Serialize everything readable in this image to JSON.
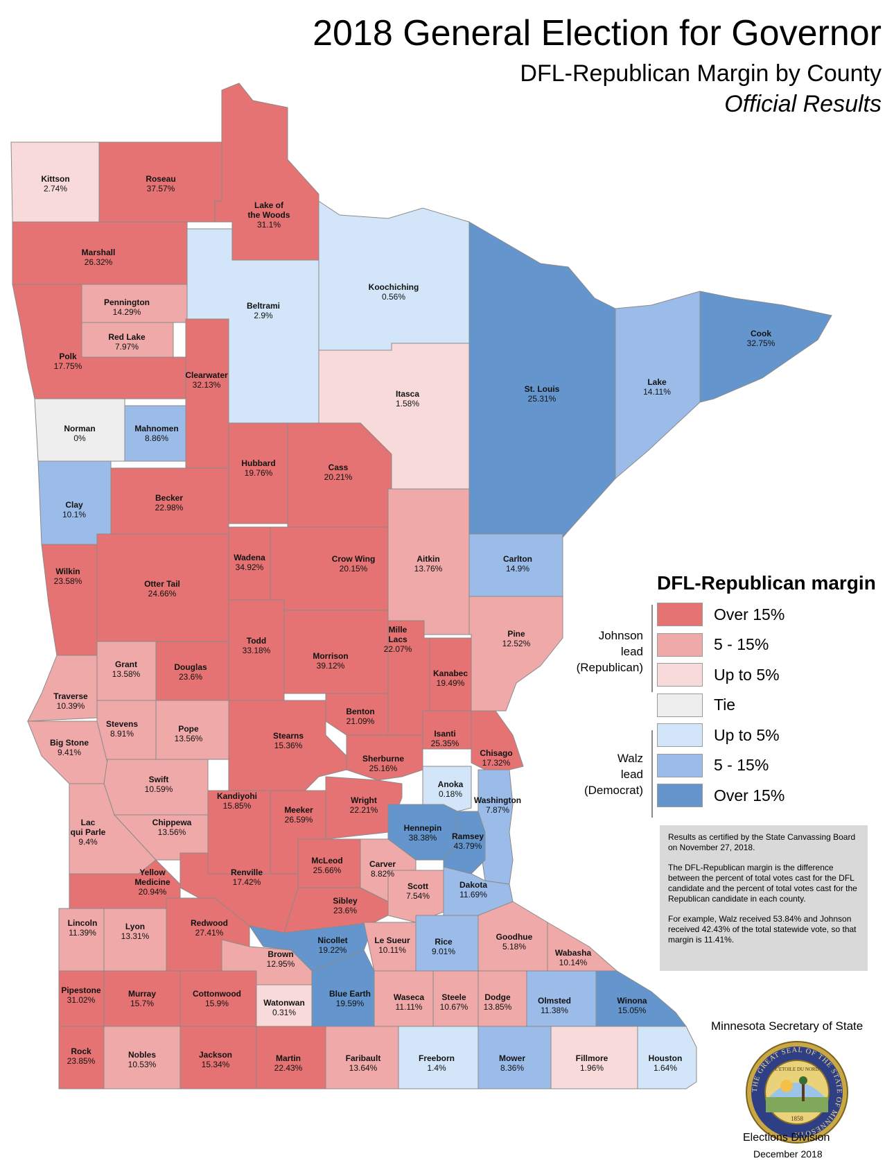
{
  "header": {
    "title": "2018 General Election for Governor",
    "subtitle": "DFL-Republican Margin by County",
    "status": "Official Results"
  },
  "colors": {
    "rep_over15": "#e57373",
    "rep_5_15": "#f0a9a9",
    "rep_upto5": "#f9dada",
    "tie": "#eeeeee",
    "dem_upto5": "#d3e6f9",
    "dem_5_15": "#9bbce9",
    "dem_over15": "#6496cd"
  },
  "legend": {
    "title": "DFL-Republican margin",
    "johnson_label": "Johnson\nlead\n(Republican)",
    "walz_label": "Walz\nlead\n(Democrat)",
    "items": [
      {
        "label": "Over 15%",
        "color": "rep_over15"
      },
      {
        "label": "5 - 15%",
        "color": "rep_5_15"
      },
      {
        "label": "Up to 5%",
        "color": "rep_upto5"
      },
      {
        "label": "Tie",
        "color": "tie"
      },
      {
        "label": "Up to 5%",
        "color": "dem_upto5"
      },
      {
        "label": "5 - 15%",
        "color": "dem_5_15"
      },
      {
        "label": "Over 15%",
        "color": "dem_over15"
      }
    ]
  },
  "notes": {
    "p1": "Results as certified by the State Canvassing Board on November 27, 2018.",
    "p2": "The DFL-Republican margin is the difference between the percent of total votes cast for the DFL candidate and the percent of total votes cast for the Republican candidate in each county.",
    "p3": "For example, Walz received 53.84% and Johnson received 42.43% of the total statewide vote, so that margin is 11.41%."
  },
  "footer": {
    "agency": "Minnesota Secretary of State",
    "division": "Elections Division",
    "date": "December 2018",
    "seal_text": "THE GREAT SEAL OF THE STATE OF MINNESOTA",
    "seal_motto": "L'ETOILE DU NORD",
    "seal_year": "1858"
  },
  "counties": [
    {
      "name": "Kittson",
      "margin": "2.74%",
      "cat": "rep_upto5"
    },
    {
      "name": "Roseau",
      "margin": "37.57%",
      "cat": "rep_over15"
    },
    {
      "name": "Lake of the Woods",
      "margin": "31.1%",
      "cat": "rep_over15"
    },
    {
      "name": "Marshall",
      "margin": "26.32%",
      "cat": "rep_over15"
    },
    {
      "name": "Pennington",
      "margin": "14.29%",
      "cat": "rep_5_15"
    },
    {
      "name": "Red Lake",
      "margin": "7.97%",
      "cat": "rep_5_15"
    },
    {
      "name": "Polk",
      "margin": "17.75%",
      "cat": "rep_over15"
    },
    {
      "name": "Beltrami",
      "margin": "2.9%",
      "cat": "dem_upto5"
    },
    {
      "name": "Koochiching",
      "margin": "0.56%",
      "cat": "dem_upto5"
    },
    {
      "name": "Clearwater",
      "margin": "32.13%",
      "cat": "rep_over15"
    },
    {
      "name": "Itasca",
      "margin": "1.58%",
      "cat": "rep_upto5"
    },
    {
      "name": "St. Louis",
      "margin": "25.31%",
      "cat": "dem_over15"
    },
    {
      "name": "Lake",
      "margin": "14.11%",
      "cat": "dem_5_15"
    },
    {
      "name": "Cook",
      "margin": "32.75%",
      "cat": "dem_over15"
    },
    {
      "name": "Norman",
      "margin": "0%",
      "cat": "tie"
    },
    {
      "name": "Mahnomen",
      "margin": "8.86%",
      "cat": "dem_5_15"
    },
    {
      "name": "Hubbard",
      "margin": "19.76%",
      "cat": "rep_over15"
    },
    {
      "name": "Cass",
      "margin": "20.21%",
      "cat": "rep_over15"
    },
    {
      "name": "Clay",
      "margin": "10.1%",
      "cat": "dem_5_15"
    },
    {
      "name": "Becker",
      "margin": "22.98%",
      "cat": "rep_over15"
    },
    {
      "name": "Wadena",
      "margin": "34.92%",
      "cat": "rep_over15"
    },
    {
      "name": "Crow Wing",
      "margin": "20.15%",
      "cat": "rep_over15"
    },
    {
      "name": "Aitkin",
      "margin": "13.76%",
      "cat": "rep_5_15"
    },
    {
      "name": "Carlton",
      "margin": "14.9%",
      "cat": "dem_5_15"
    },
    {
      "name": "Wilkin",
      "margin": "23.58%",
      "cat": "rep_over15"
    },
    {
      "name": "Otter Tail",
      "margin": "24.66%",
      "cat": "rep_over15"
    },
    {
      "name": "Todd",
      "margin": "33.18%",
      "cat": "rep_over15"
    },
    {
      "name": "Morrison",
      "margin": "39.12%",
      "cat": "rep_over15"
    },
    {
      "name": "Mille Lacs",
      "margin": "22.07%",
      "cat": "rep_over15"
    },
    {
      "name": "Kanabec",
      "margin": "19.49%",
      "cat": "rep_over15"
    },
    {
      "name": "Pine",
      "margin": "12.52%",
      "cat": "rep_5_15"
    },
    {
      "name": "Grant",
      "margin": "13.58%",
      "cat": "rep_5_15"
    },
    {
      "name": "Douglas",
      "margin": "23.6%",
      "cat": "rep_over15"
    },
    {
      "name": "Traverse",
      "margin": "10.39%",
      "cat": "rep_5_15"
    },
    {
      "name": "Stevens",
      "margin": "8.91%",
      "cat": "rep_5_15"
    },
    {
      "name": "Pope",
      "margin": "13.56%",
      "cat": "rep_5_15"
    },
    {
      "name": "Stearns",
      "margin": "15.36%",
      "cat": "rep_over15"
    },
    {
      "name": "Benton",
      "margin": "21.09%",
      "cat": "rep_over15"
    },
    {
      "name": "Isanti",
      "margin": "25.35%",
      "cat": "rep_over15"
    },
    {
      "name": "Chisago",
      "margin": "17.32%",
      "cat": "rep_over15"
    },
    {
      "name": "Big Stone",
      "margin": "9.41%",
      "cat": "rep_5_15"
    },
    {
      "name": "Swift",
      "margin": "10.59%",
      "cat": "rep_5_15"
    },
    {
      "name": "Kandiyohi",
      "margin": "15.85%",
      "cat": "rep_over15"
    },
    {
      "name": "Meeker",
      "margin": "26.59%",
      "cat": "rep_over15"
    },
    {
      "name": "Sherburne",
      "margin": "25.16%",
      "cat": "rep_over15"
    },
    {
      "name": "Wright",
      "margin": "22.21%",
      "cat": "rep_over15"
    },
    {
      "name": "Anoka",
      "margin": "0.18%",
      "cat": "dem_upto5"
    },
    {
      "name": "Washington",
      "margin": "7.87%",
      "cat": "dem_5_15"
    },
    {
      "name": "Lac qui Parle",
      "margin": "9.4%",
      "cat": "rep_5_15"
    },
    {
      "name": "Chippewa",
      "margin": "13.56%",
      "cat": "rep_5_15"
    },
    {
      "name": "Hennepin",
      "margin": "38.38%",
      "cat": "dem_over15"
    },
    {
      "name": "Ramsey",
      "margin": "43.79%",
      "cat": "dem_over15"
    },
    {
      "name": "Yellow Medicine",
      "margin": "20.94%",
      "cat": "rep_over15"
    },
    {
      "name": "Renville",
      "margin": "17.42%",
      "cat": "rep_over15"
    },
    {
      "name": "McLeod",
      "margin": "25.66%",
      "cat": "rep_over15"
    },
    {
      "name": "Carver",
      "margin": "8.82%",
      "cat": "rep_5_15"
    },
    {
      "name": "Scott",
      "margin": "7.54%",
      "cat": "rep_5_15"
    },
    {
      "name": "Dakota",
      "margin": "11.69%",
      "cat": "dem_5_15"
    },
    {
      "name": "Sibley",
      "margin": "23.6%",
      "cat": "rep_over15"
    },
    {
      "name": "Lincoln",
      "margin": "11.39%",
      "cat": "rep_5_15"
    },
    {
      "name": "Lyon",
      "margin": "13.31%",
      "cat": "rep_5_15"
    },
    {
      "name": "Redwood",
      "margin": "27.41%",
      "cat": "rep_over15"
    },
    {
      "name": "Nicollet",
      "margin": "19.22%",
      "cat": "dem_over15"
    },
    {
      "name": "Le Sueur",
      "margin": "10.11%",
      "cat": "rep_5_15"
    },
    {
      "name": "Rice",
      "margin": "9.01%",
      "cat": "dem_5_15"
    },
    {
      "name": "Goodhue",
      "margin": "5.18%",
      "cat": "rep_5_15"
    },
    {
      "name": "Wabasha",
      "margin": "10.14%",
      "cat": "rep_5_15"
    },
    {
      "name": "Brown",
      "margin": "12.95%",
      "cat": "rep_5_15"
    },
    {
      "name": "Pipestone",
      "margin": "31.02%",
      "cat": "rep_over15"
    },
    {
      "name": "Murray",
      "margin": "15.7%",
      "cat": "rep_over15"
    },
    {
      "name": "Cottonwood",
      "margin": "15.9%",
      "cat": "rep_over15"
    },
    {
      "name": "Watonwan",
      "margin": "0.31%",
      "cat": "rep_upto5"
    },
    {
      "name": "Blue Earth",
      "margin": "19.59%",
      "cat": "dem_over15"
    },
    {
      "name": "Waseca",
      "margin": "11.11%",
      "cat": "rep_5_15"
    },
    {
      "name": "Steele",
      "margin": "10.67%",
      "cat": "rep_5_15"
    },
    {
      "name": "Dodge",
      "margin": "13.85%",
      "cat": "rep_5_15"
    },
    {
      "name": "Olmsted",
      "margin": "11.38%",
      "cat": "dem_5_15"
    },
    {
      "name": "Winona",
      "margin": "15.05%",
      "cat": "dem_over15"
    },
    {
      "name": "Rock",
      "margin": "23.85%",
      "cat": "rep_over15"
    },
    {
      "name": "Nobles",
      "margin": "10.53%",
      "cat": "rep_5_15"
    },
    {
      "name": "Jackson",
      "margin": "15.34%",
      "cat": "rep_over15"
    },
    {
      "name": "Martin",
      "margin": "22.43%",
      "cat": "rep_over15"
    },
    {
      "name": "Faribault",
      "margin": "13.64%",
      "cat": "rep_5_15"
    },
    {
      "name": "Freeborn",
      "margin": "1.4%",
      "cat": "dem_upto5"
    },
    {
      "name": "Mower",
      "margin": "8.36%",
      "cat": "dem_5_15"
    },
    {
      "name": "Fillmore",
      "margin": "1.96%",
      "cat": "rep_upto5"
    },
    {
      "name": "Houston",
      "margin": "1.64%",
      "cat": "dem_upto5"
    }
  ]
}
